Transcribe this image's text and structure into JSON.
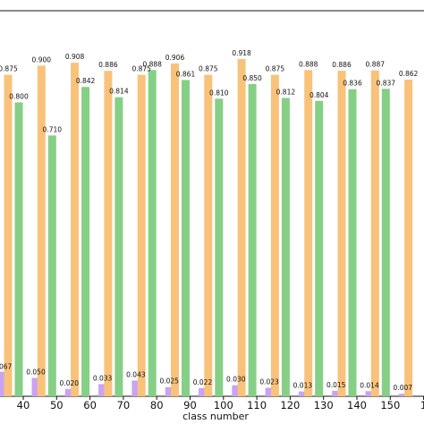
{
  "chart_data": {
    "type": "bar",
    "xlabel": "class number",
    "ylabel": "",
    "title": "",
    "ylim": [
      0,
      1.0
    ],
    "colors": [
      "#f9c27a",
      "#86cf86",
      "#c9a3f2"
    ],
    "categories": [
      "40",
      "50",
      "60",
      "70",
      "80",
      "90",
      "100",
      "110",
      "120",
      "130",
      "140",
      "150",
      "1"
    ],
    "series": [
      {
        "values": [
          0.875,
          0.9,
          0.908,
          0.886,
          0.875,
          0.906,
          0.875,
          0.918,
          0.875,
          0.888,
          0.886,
          0.887,
          0.862
        ],
        "labels": [
          "0.875",
          "0.900",
          "0.908",
          "0.886",
          "0.875",
          "0.906",
          "0.875",
          "0.918",
          "0.875",
          "0.888",
          "0.886",
          "0.887",
          "0.862"
        ]
      },
      {
        "values": [
          0.8,
          0.71,
          0.842,
          0.814,
          0.888,
          0.861,
          0.81,
          0.85,
          0.812,
          0.804,
          0.836,
          0.837,
          null
        ],
        "labels": [
          "0.800",
          "0.710",
          "0.842",
          "0.814",
          "0.888",
          "0.861",
          "0.810",
          "0.850",
          "0.812",
          "0.804",
          "0.836",
          "0.837",
          ""
        ]
      },
      {
        "values": [
          0.05,
          0.02,
          0.033,
          0.043,
          0.025,
          0.022,
          0.03,
          0.023,
          0.013,
          0.015,
          0.014,
          0.007,
          0.006
        ],
        "labels": [
          "0.050",
          "0.020",
          "0.033",
          "0.043",
          "0.025",
          "0.022",
          "0.030",
          "0.023",
          "0.013",
          "0.015",
          "0.014",
          "0.007",
          ""
        ]
      }
    ],
    "left_partial": {
      "purple_value": 0.067,
      "purple_label": "067"
    }
  }
}
